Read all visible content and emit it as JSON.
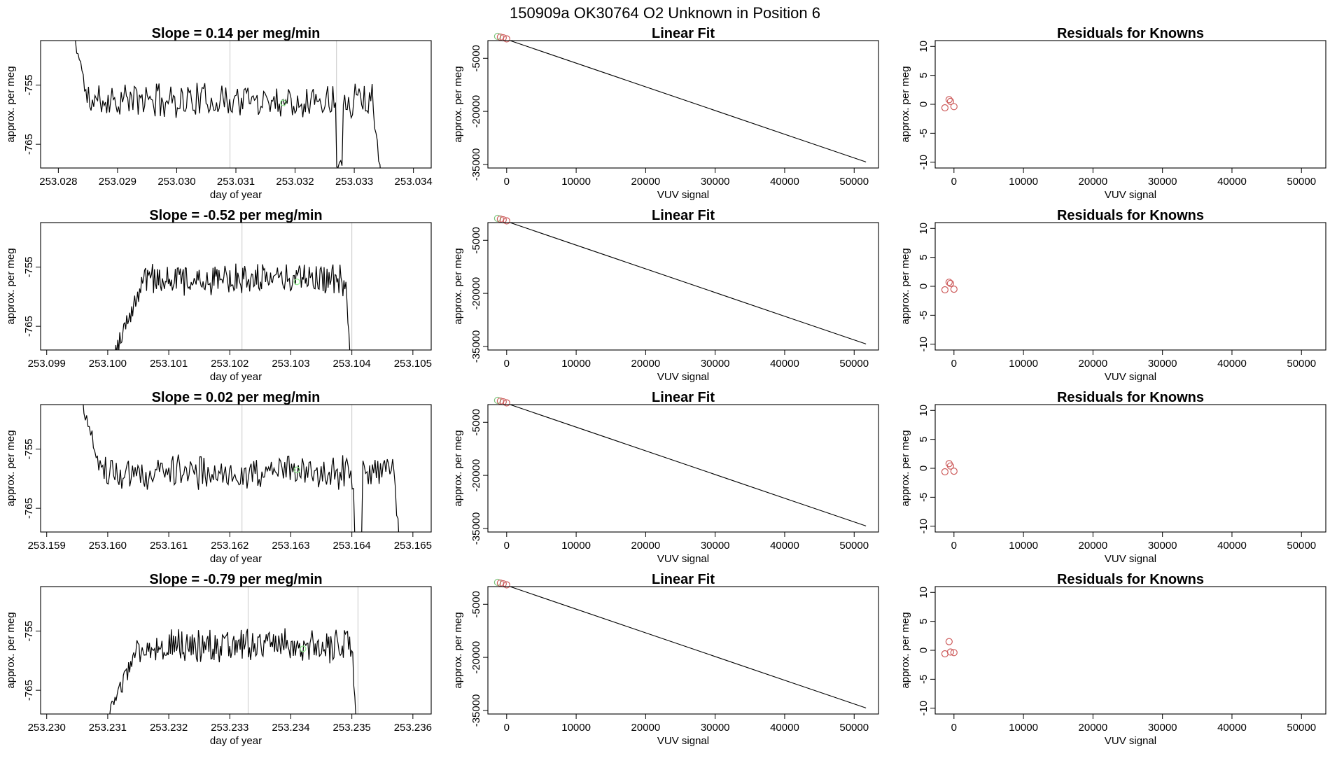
{
  "figure": {
    "title": "150909a      OK30764    O2 Unknown in Position  6"
  },
  "colors": {
    "trace": "#000000",
    "marker_green": "#90ee90",
    "fit_points": "#cd5c5c",
    "fit_points_green": "#7cc47c",
    "vline": "#c8c8c8",
    "fit_line": "#000000"
  },
  "chart_data": [
    {
      "type": "line",
      "panel": "timeseries",
      "title": "Slope =  0.14  per meg/min",
      "xlabel": "day of year",
      "ylabel": "approx. per meg",
      "xticks": [
        "253.028",
        "253.029",
        "253.030",
        "253.031",
        "253.032",
        "253.033",
        "253.034"
      ],
      "yticks": [
        "-765",
        "-755"
      ],
      "xlim": [
        253.0277,
        253.0343
      ],
      "ylim": [
        -769,
        -747.5
      ],
      "vlines": [
        253.0309,
        253.0327
      ],
      "green_point": {
        "x": 253.0318,
        "y": -758
      },
      "seed": 11,
      "series": [
        {
          "start": 253.0282,
          "end": 253.0335,
          "level": -757.5,
          "noise": 2.6,
          "ramp_from": -744,
          "ramp_end": 253.0285,
          "tail": {
            "x": 253.0333,
            "drop_to": -775
          },
          "dip": {
            "x": 253.03275,
            "y": -768
          }
        }
      ]
    },
    {
      "type": "scatter",
      "panel": "fit",
      "title": "Linear Fit",
      "xlabel": "VUV signal",
      "ylabel": "approx. per meg",
      "xticks": [
        "0",
        "10000",
        "20000",
        "30000",
        "40000",
        "50000"
      ],
      "yticks": [
        "-35000",
        "-20000",
        "-5000"
      ],
      "xlim": [
        -2700,
        53500
      ],
      "ylim": [
        -36000,
        0
      ],
      "points": [
        {
          "x": -1300,
          "y": 1200,
          "c": "green"
        },
        {
          "x": -900,
          "y": 1000,
          "c": "red"
        },
        {
          "x": -500,
          "y": 800,
          "c": "red"
        },
        {
          "x": 0,
          "y": 500,
          "c": "red"
        }
      ],
      "line": {
        "x1": -1300,
        "y1": 1200,
        "x2": 51700,
        "y2": -34300
      }
    },
    {
      "type": "scatter",
      "panel": "resid",
      "title": "Residuals for Knowns",
      "xlabel": "VUV signal",
      "ylabel": "approx. per meg",
      "xticks": [
        "0",
        "10000",
        "20000",
        "30000",
        "40000",
        "50000"
      ],
      "yticks": [
        "-10",
        "-5",
        "0",
        "5",
        "10"
      ],
      "xlim": [
        -2700,
        53500
      ],
      "ylim": [
        -11,
        11
      ],
      "points": [
        {
          "x": -1300,
          "y": -0.6
        },
        {
          "x": -700,
          "y": 0.8
        },
        {
          "x": -500,
          "y": 0.5
        },
        {
          "x": 0,
          "y": -0.4
        }
      ]
    },
    {
      "type": "line",
      "panel": "timeseries",
      "title": "Slope =  -0.52  per meg/min",
      "xlabel": "day of year",
      "ylabel": "approx. per meg",
      "xticks": [
        "253.099",
        "253.100",
        "253.101",
        "253.102",
        "253.103",
        "253.104",
        "253.105"
      ],
      "yticks": [
        "-765",
        "-755"
      ],
      "xlim": [
        253.0989,
        253.1053
      ],
      "ylim": [
        -769,
        -747.5
      ],
      "vlines": [
        253.1022,
        253.104
      ],
      "green_point": {
        "x": 253.1031,
        "y": -757.5
      },
      "seed": 23,
      "series": [
        {
          "start": 253.1001,
          "end": 253.104,
          "level": -757,
          "noise": 2.4,
          "ramp_from": -770,
          "ramp_end": 253.1006,
          "tail": {
            "x": 253.1039,
            "drop_to": -775
          }
        }
      ]
    },
    {
      "type": "scatter",
      "panel": "fit",
      "title": "Linear Fit",
      "xlabel": "VUV signal",
      "ylabel": "approx. per meg",
      "xticks": [
        "0",
        "10000",
        "20000",
        "30000",
        "40000",
        "50000"
      ],
      "yticks": [
        "-35000",
        "-20000",
        "-5000"
      ],
      "xlim": [
        -2700,
        53500
      ],
      "ylim": [
        -36000,
        0
      ],
      "points": [
        {
          "x": -1300,
          "y": 1200,
          "c": "green"
        },
        {
          "x": -900,
          "y": 1000,
          "c": "red"
        },
        {
          "x": -500,
          "y": 800,
          "c": "red"
        },
        {
          "x": 0,
          "y": 500,
          "c": "red"
        }
      ],
      "line": {
        "x1": -1300,
        "y1": 1200,
        "x2": 51700,
        "y2": -34300
      }
    },
    {
      "type": "scatter",
      "panel": "resid",
      "title": "Residuals for Knowns",
      "xlabel": "VUV signal",
      "ylabel": "approx. per meg",
      "xticks": [
        "0",
        "10000",
        "20000",
        "30000",
        "40000",
        "50000"
      ],
      "yticks": [
        "-10",
        "-5",
        "0",
        "5",
        "10"
      ],
      "xlim": [
        -2700,
        53500
      ],
      "ylim": [
        -11,
        11
      ],
      "points": [
        {
          "x": -1300,
          "y": -0.6
        },
        {
          "x": -700,
          "y": 0.7
        },
        {
          "x": -500,
          "y": 0.5
        },
        {
          "x": 0,
          "y": -0.5
        }
      ]
    },
    {
      "type": "line",
      "panel": "timeseries",
      "title": "Slope =  0.02  per meg/min",
      "xlabel": "day of year",
      "ylabel": "approx. per meg",
      "xticks": [
        "253.159",
        "253.160",
        "253.161",
        "253.162",
        "253.163",
        "253.164",
        "253.165"
      ],
      "yticks": [
        "-765",
        "-755"
      ],
      "xlim": [
        253.1589,
        253.1653
      ],
      "ylim": [
        -769,
        -747.5
      ],
      "vlines": [
        253.1622,
        253.164
      ],
      "green_point": {
        "x": 253.1631,
        "y": -758.5
      },
      "seed": 37,
      "series": [
        {
          "start": 253.1595,
          "end": 253.1648,
          "level": -759,
          "noise": 2.6,
          "ramp_from": -744,
          "ramp_end": 253.1599,
          "tail": {
            "x": 253.1647,
            "drop_to": -775
          },
          "dip": {
            "x": 253.1641,
            "y": -770
          }
        }
      ]
    },
    {
      "type": "scatter",
      "panel": "fit",
      "title": "Linear Fit",
      "xlabel": "VUV signal",
      "ylabel": "approx. per meg",
      "xticks": [
        "0",
        "10000",
        "20000",
        "30000",
        "40000",
        "50000"
      ],
      "yticks": [
        "-35000",
        "-20000",
        "-5000"
      ],
      "xlim": [
        -2700,
        53500
      ],
      "ylim": [
        -36000,
        0
      ],
      "points": [
        {
          "x": -1300,
          "y": 1200,
          "c": "green"
        },
        {
          "x": -900,
          "y": 1000,
          "c": "red"
        },
        {
          "x": -500,
          "y": 800,
          "c": "red"
        },
        {
          "x": 0,
          "y": 500,
          "c": "red"
        }
      ],
      "line": {
        "x1": -1300,
        "y1": 1200,
        "x2": 51700,
        "y2": -34300
      }
    },
    {
      "type": "scatter",
      "panel": "resid",
      "title": "Residuals for Knowns",
      "xlabel": "VUV signal",
      "ylabel": "approx. per meg",
      "xticks": [
        "0",
        "10000",
        "20000",
        "30000",
        "40000",
        "50000"
      ],
      "yticks": [
        "-10",
        "-5",
        "0",
        "5",
        "10"
      ],
      "xlim": [
        -2700,
        53500
      ],
      "ylim": [
        -11,
        11
      ],
      "points": [
        {
          "x": -1300,
          "y": -0.6
        },
        {
          "x": -700,
          "y": 0.8
        },
        {
          "x": -500,
          "y": 0.4
        },
        {
          "x": 0,
          "y": -0.5
        }
      ]
    },
    {
      "type": "line",
      "panel": "timeseries",
      "title": "Slope =  -0.79  per meg/min",
      "xlabel": "day of year",
      "ylabel": "approx. per meg",
      "xticks": [
        "253.230",
        "253.231",
        "253.232",
        "253.233",
        "253.234",
        "253.235",
        "253.236"
      ],
      "yticks": [
        "-765",
        "-755"
      ],
      "xlim": [
        253.2299,
        253.2363
      ],
      "ylim": [
        -769,
        -747.5
      ],
      "vlines": [
        253.2333,
        253.2351
      ],
      "green_point": {
        "x": 253.2342,
        "y": -758
      },
      "seed": 53,
      "series": [
        {
          "start": 253.231,
          "end": 253.2351,
          "level": -757.5,
          "noise": 2.5,
          "ramp_from": -770,
          "ramp_end": 253.2315,
          "tail": {
            "x": 253.235,
            "drop_to": -775
          }
        }
      ]
    },
    {
      "type": "scatter",
      "panel": "fit",
      "title": "Linear Fit",
      "xlabel": "VUV signal",
      "ylabel": "approx. per meg",
      "xticks": [
        "0",
        "10000",
        "20000",
        "30000",
        "40000",
        "50000"
      ],
      "yticks": [
        "-35000",
        "-20000",
        "-5000"
      ],
      "xlim": [
        -2700,
        53500
      ],
      "ylim": [
        -36000,
        0
      ],
      "points": [
        {
          "x": -1300,
          "y": 1200,
          "c": "green"
        },
        {
          "x": -900,
          "y": 1000,
          "c": "red"
        },
        {
          "x": -500,
          "y": 800,
          "c": "red"
        },
        {
          "x": 0,
          "y": 500,
          "c": "red"
        }
      ],
      "line": {
        "x1": -1300,
        "y1": 1200,
        "x2": 51700,
        "y2": -34300
      }
    },
    {
      "type": "scatter",
      "panel": "resid",
      "title": "Residuals for Knowns",
      "xlabel": "VUV signal",
      "ylabel": "approx. per meg",
      "xticks": [
        "0",
        "10000",
        "20000",
        "30000",
        "40000",
        "50000"
      ],
      "yticks": [
        "-10",
        "-5",
        "0",
        "5",
        "10"
      ],
      "xlim": [
        -2700,
        53500
      ],
      "ylim": [
        -11,
        11
      ],
      "points": [
        {
          "x": -1300,
          "y": -0.6
        },
        {
          "x": -700,
          "y": 1.5
        },
        {
          "x": -500,
          "y": -0.3
        },
        {
          "x": 0,
          "y": -0.4
        }
      ]
    }
  ]
}
